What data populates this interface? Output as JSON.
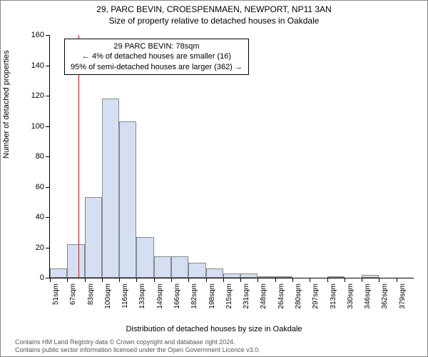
{
  "title_main": "29, PARC BEVIN, CROESPENMAEN, NEWPORT, NP11 3AN",
  "title_sub": "Size of property relative to detached houses in Oakdale",
  "y_axis_label": "Number of detached properties",
  "x_axis_title": "Distribution of detached houses by size in Oakdale",
  "chart": {
    "type": "histogram",
    "ylim": [
      0,
      160
    ],
    "ytick_step": 20,
    "xtick_labels": [
      "51sqm",
      "67sqm",
      "83sqm",
      "100sqm",
      "116sqm",
      "133sqm",
      "149sqm",
      "166sqm",
      "182sqm",
      "198sqm",
      "215sqm",
      "231sqm",
      "248sqm",
      "264sqm",
      "280sqm",
      "297sqm",
      "313sqm",
      "330sqm",
      "346sqm",
      "362sqm",
      "379sqm"
    ],
    "bars": [
      {
        "value": 6
      },
      {
        "value": 22
      },
      {
        "value": 53
      },
      {
        "value": 118
      },
      {
        "value": 103
      },
      {
        "value": 27
      },
      {
        "value": 14
      },
      {
        "value": 14
      },
      {
        "value": 10
      },
      {
        "value": 6
      },
      {
        "value": 3
      },
      {
        "value": 3
      },
      {
        "value": 1
      },
      {
        "value": 1
      },
      {
        "value": 0
      },
      {
        "value": 0
      },
      {
        "value": 1
      },
      {
        "value": 0
      },
      {
        "value": 2
      },
      {
        "value": 0
      },
      {
        "value": 0
      }
    ],
    "bar_fill": "#d5dff3",
    "bar_border": "#888888",
    "reference_line_value": 78,
    "reference_line_color": "#ff0000",
    "x_range": [
      51,
      395
    ]
  },
  "annotation": {
    "line1": "29 PARC BEVIN: 78sqm",
    "line2": "← 4% of detached houses are smaller (16)",
    "line3": "95% of semi-detached houses are larger (362) →"
  },
  "footer": {
    "line1": "Contains HM Land Registry data © Crown copyright and database right 2024.",
    "line2": "Contains public sector information licensed under the Open Government Licence v3.0."
  }
}
